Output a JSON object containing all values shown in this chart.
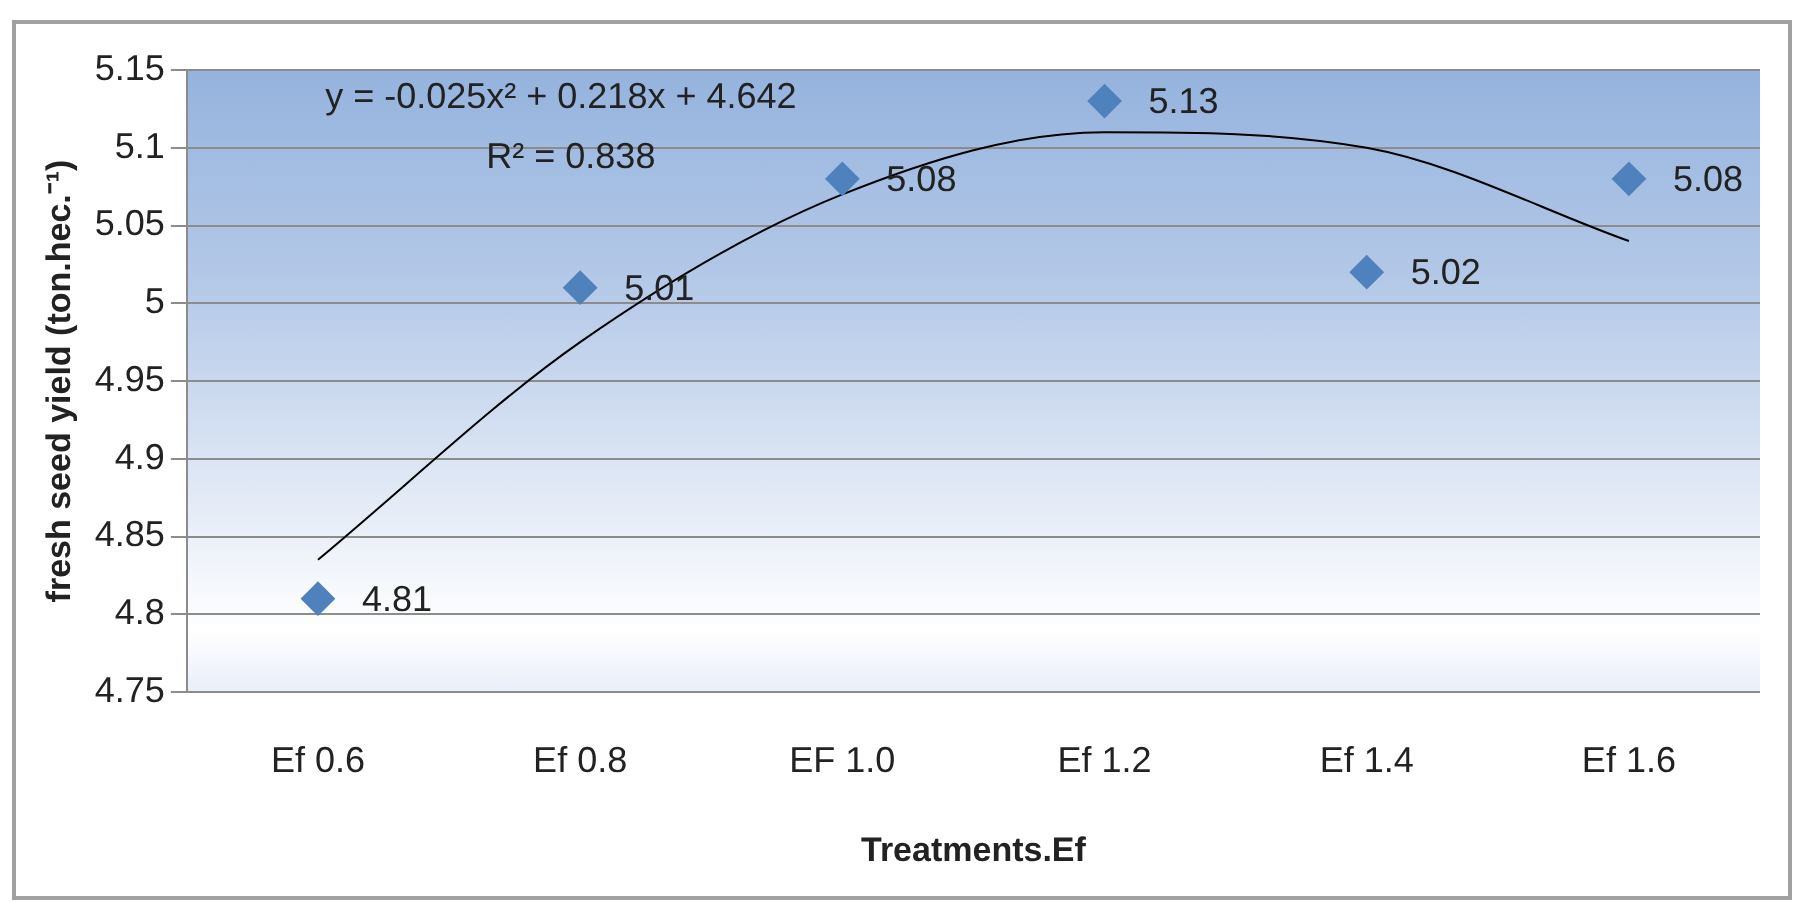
{
  "chart_data": {
    "type": "scatter",
    "categories": [
      "Ef 0.6",
      "Ef 0.8",
      "EF 1.0",
      "Ef 1.2",
      "Ef 1.4",
      "Ef 1.6"
    ],
    "series": [
      {
        "color": "#4f81bd",
        "values": [
          4.81,
          5.01,
          5.08,
          5.13,
          5.02,
          5.08
        ],
        "value_labels": [
          "4.81",
          "5.01",
          "5.08",
          "5.13",
          "5.02",
          "5.08"
        ],
        "marker": "diamond"
      },
      {
        "type": "line",
        "color": "#000000",
        "values": [
          4.835,
          4.975,
          5.07,
          5.11,
          5.1,
          5.04
        ],
        "marker": "none"
      }
    ],
    "xlabel": "Treatments.Ef",
    "ylabel": "fresh seed yield (ton.hec.⁻¹)",
    "ylim": [
      4.75,
      5.15
    ],
    "yticks": [
      4.75,
      4.8,
      4.85,
      4.9,
      4.95,
      5,
      5.05,
      5.1,
      5.15
    ],
    "grid": "y",
    "legend": false,
    "annotations": [
      "y = -0.025x² + 0.218x + 4.642",
      "R² = 0.838"
    ]
  }
}
